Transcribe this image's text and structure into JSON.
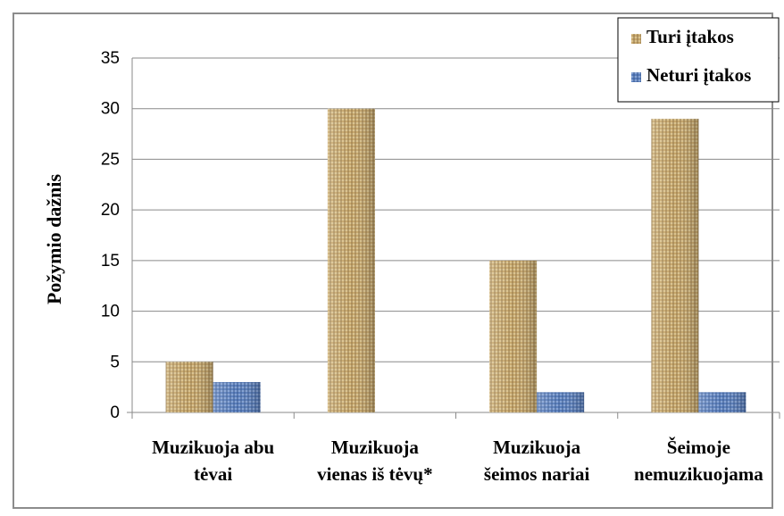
{
  "chart_data": {
    "type": "bar",
    "title": "",
    "xlabel": "",
    "ylabel": "Požymio dažnis",
    "ylim": [
      0,
      35
    ],
    "yticks": [
      0,
      5,
      10,
      15,
      20,
      25,
      30,
      35
    ],
    "grid": true,
    "legend_position": "top-right",
    "categories": [
      [
        "Muzikuoja abu",
        "tėvai"
      ],
      [
        "Muzikuoja",
        "vienas iš tėvų*"
      ],
      [
        "Muzikuoja",
        "šeimos nariai"
      ],
      [
        "Šeimoje",
        "nemuzikuojama"
      ]
    ],
    "series": [
      {
        "name": "Turi įtakos",
        "values": [
          5,
          30,
          15,
          29
        ],
        "color": "#c9a96e"
      },
      {
        "name": "Neturi įtakos",
        "values": [
          3,
          0,
          2,
          2
        ],
        "color": "#5b7fb8"
      }
    ]
  }
}
